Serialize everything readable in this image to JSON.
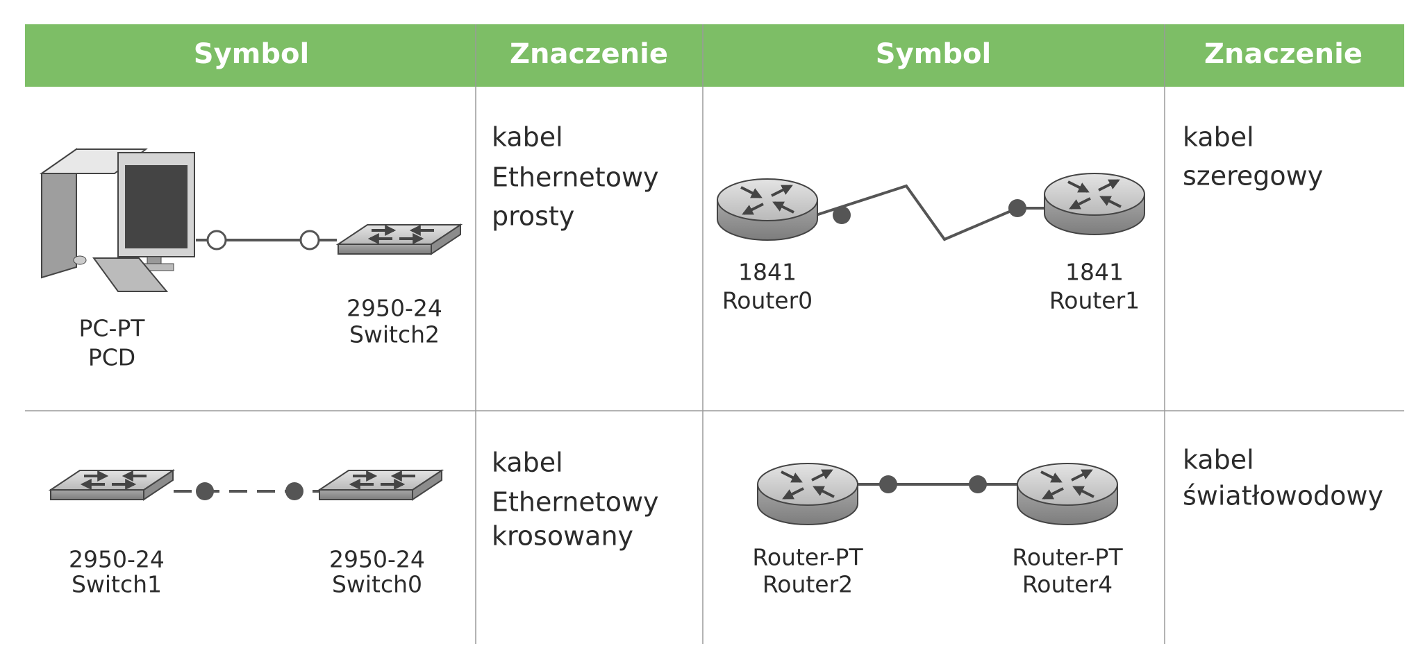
{
  "table": {
    "headers": [
      "Symbol",
      "Znaczenie",
      "Symbol",
      "Znaczenie"
    ],
    "rows": [
      {
        "left": {
          "devices": [
            {
              "model": "PC-PT",
              "name": "PCD"
            },
            {
              "model": "2950-24",
              "name": "Switch2"
            }
          ],
          "meaning": [
            "kabel",
            "Ethernetowy",
            "prosty"
          ]
        },
        "right": {
          "devices": [
            {
              "model": "1841",
              "name": "Router0"
            },
            {
              "model": "1841",
              "name": "Router1"
            }
          ],
          "meaning": [
            "kabel",
            "szeregowy"
          ]
        }
      },
      {
        "left": {
          "devices": [
            {
              "model": "2950-24",
              "name": "Switch1"
            },
            {
              "model": "2950-24",
              "name": "Switch0"
            }
          ],
          "meaning": [
            "kabel",
            "Ethernetowy",
            "krosowany"
          ]
        },
        "right": {
          "devices": [
            {
              "model": "Router-PT",
              "name": "Router2"
            },
            {
              "model": "Router-PT",
              "name": "Router4"
            }
          ],
          "meaning": [
            "kabel",
            "światłowodowy"
          ]
        }
      }
    ]
  }
}
